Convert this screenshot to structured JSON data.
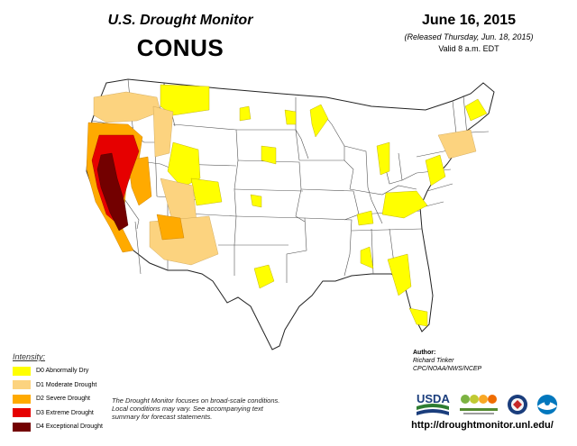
{
  "header": {
    "product": "U.S. Drought Monitor",
    "region": "CONUS",
    "date": "June 16, 2015",
    "released": "(Released Thursday, Jun. 18, 2015)",
    "valid": "Valid 8 a.m. EDT"
  },
  "legend": {
    "title": "Intensity:",
    "items": [
      {
        "label": "D0 Abnormally Dry",
        "color": "#ffff00"
      },
      {
        "label": "D1 Moderate Drought",
        "color": "#fcd37f"
      },
      {
        "label": "D2 Severe Drought",
        "color": "#ffaa00"
      },
      {
        "label": "D3 Extreme Drought",
        "color": "#e60000"
      },
      {
        "label": "D4 Exceptional Drought",
        "color": "#730000"
      }
    ]
  },
  "note": "The Drought Monitor focuses on broad-scale conditions. Local conditions may vary. See accompanying text summary for forecast statements.",
  "author": {
    "label": "Author:",
    "name": "Richard Tinker",
    "org": "CPC/NOAA/NWS/NCEP"
  },
  "logos": {
    "usda": "USDA"
  },
  "url": "http://droughtmonitor.unl.edu/",
  "colors": {
    "d0": "#ffff00",
    "d1": "#fcd37f",
    "d2": "#ffaa00",
    "d3": "#e60000",
    "d4": "#730000"
  }
}
